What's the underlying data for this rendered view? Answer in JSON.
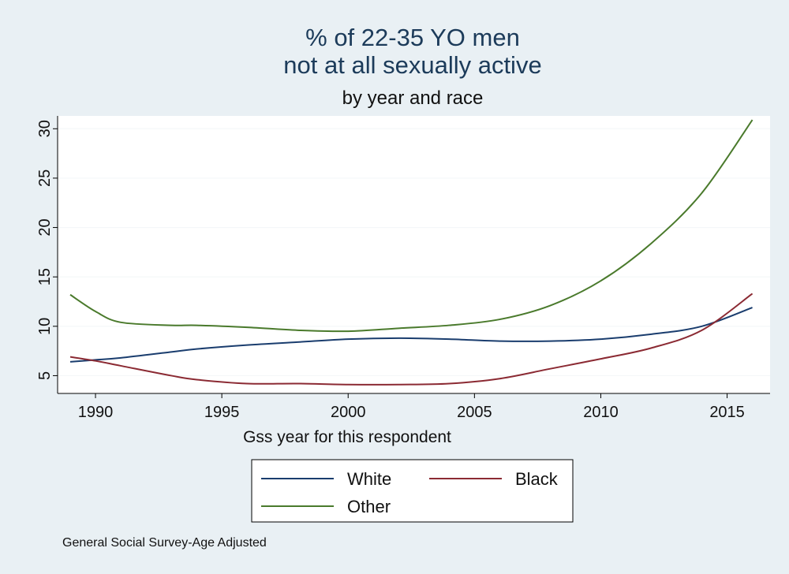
{
  "chart_data": {
    "type": "line",
    "title": "% of 22-35 YO men",
    "title_line2": "not at all sexually active",
    "subtitle": "by year and race",
    "xlabel": "Gss year for this respondent",
    "ylabel": "",
    "xlim": [
      1988.5,
      2016.7
    ],
    "ylim": [
      3.2,
      31.3
    ],
    "xticks": [
      1990,
      1995,
      2000,
      2005,
      2010,
      2015
    ],
    "yticks": [
      5,
      10,
      15,
      20,
      25,
      30
    ],
    "grid": true,
    "legend_position": "bottom",
    "note": "General Social Survey-Age Adjusted",
    "series": [
      {
        "name": "White",
        "color": "#1a3d6e",
        "x": [
          1989,
          1990,
          1991,
          1993,
          1994,
          1996,
          1998,
          2000,
          2002,
          2004,
          2006,
          2008,
          2010,
          2012,
          2014,
          2016
        ],
        "y": [
          6.4,
          6.6,
          6.8,
          7.4,
          7.7,
          8.1,
          8.4,
          8.7,
          8.8,
          8.7,
          8.5,
          8.5,
          8.7,
          9.2,
          10.0,
          11.9
        ]
      },
      {
        "name": "Black",
        "color": "#8b2a33",
        "x": [
          1989,
          1990,
          1991,
          1993,
          1994,
          1996,
          1998,
          2000,
          2002,
          2004,
          2006,
          2008,
          2010,
          2012,
          2014,
          2016
        ],
        "y": [
          6.9,
          6.5,
          6.0,
          5.0,
          4.6,
          4.2,
          4.2,
          4.1,
          4.1,
          4.2,
          4.7,
          5.7,
          6.7,
          7.8,
          9.6,
          13.3
        ]
      },
      {
        "name": "Other",
        "color": "#4a7a2c",
        "x": [
          1989,
          1990,
          1991,
          1993,
          1994,
          1996,
          1998,
          2000,
          2002,
          2004,
          2006,
          2008,
          2010,
          2012,
          2014,
          2016
        ],
        "y": [
          13.2,
          11.5,
          10.4,
          10.1,
          10.1,
          9.9,
          9.6,
          9.5,
          9.8,
          10.1,
          10.7,
          12.1,
          14.6,
          18.4,
          23.5,
          30.9
        ]
      }
    ]
  }
}
